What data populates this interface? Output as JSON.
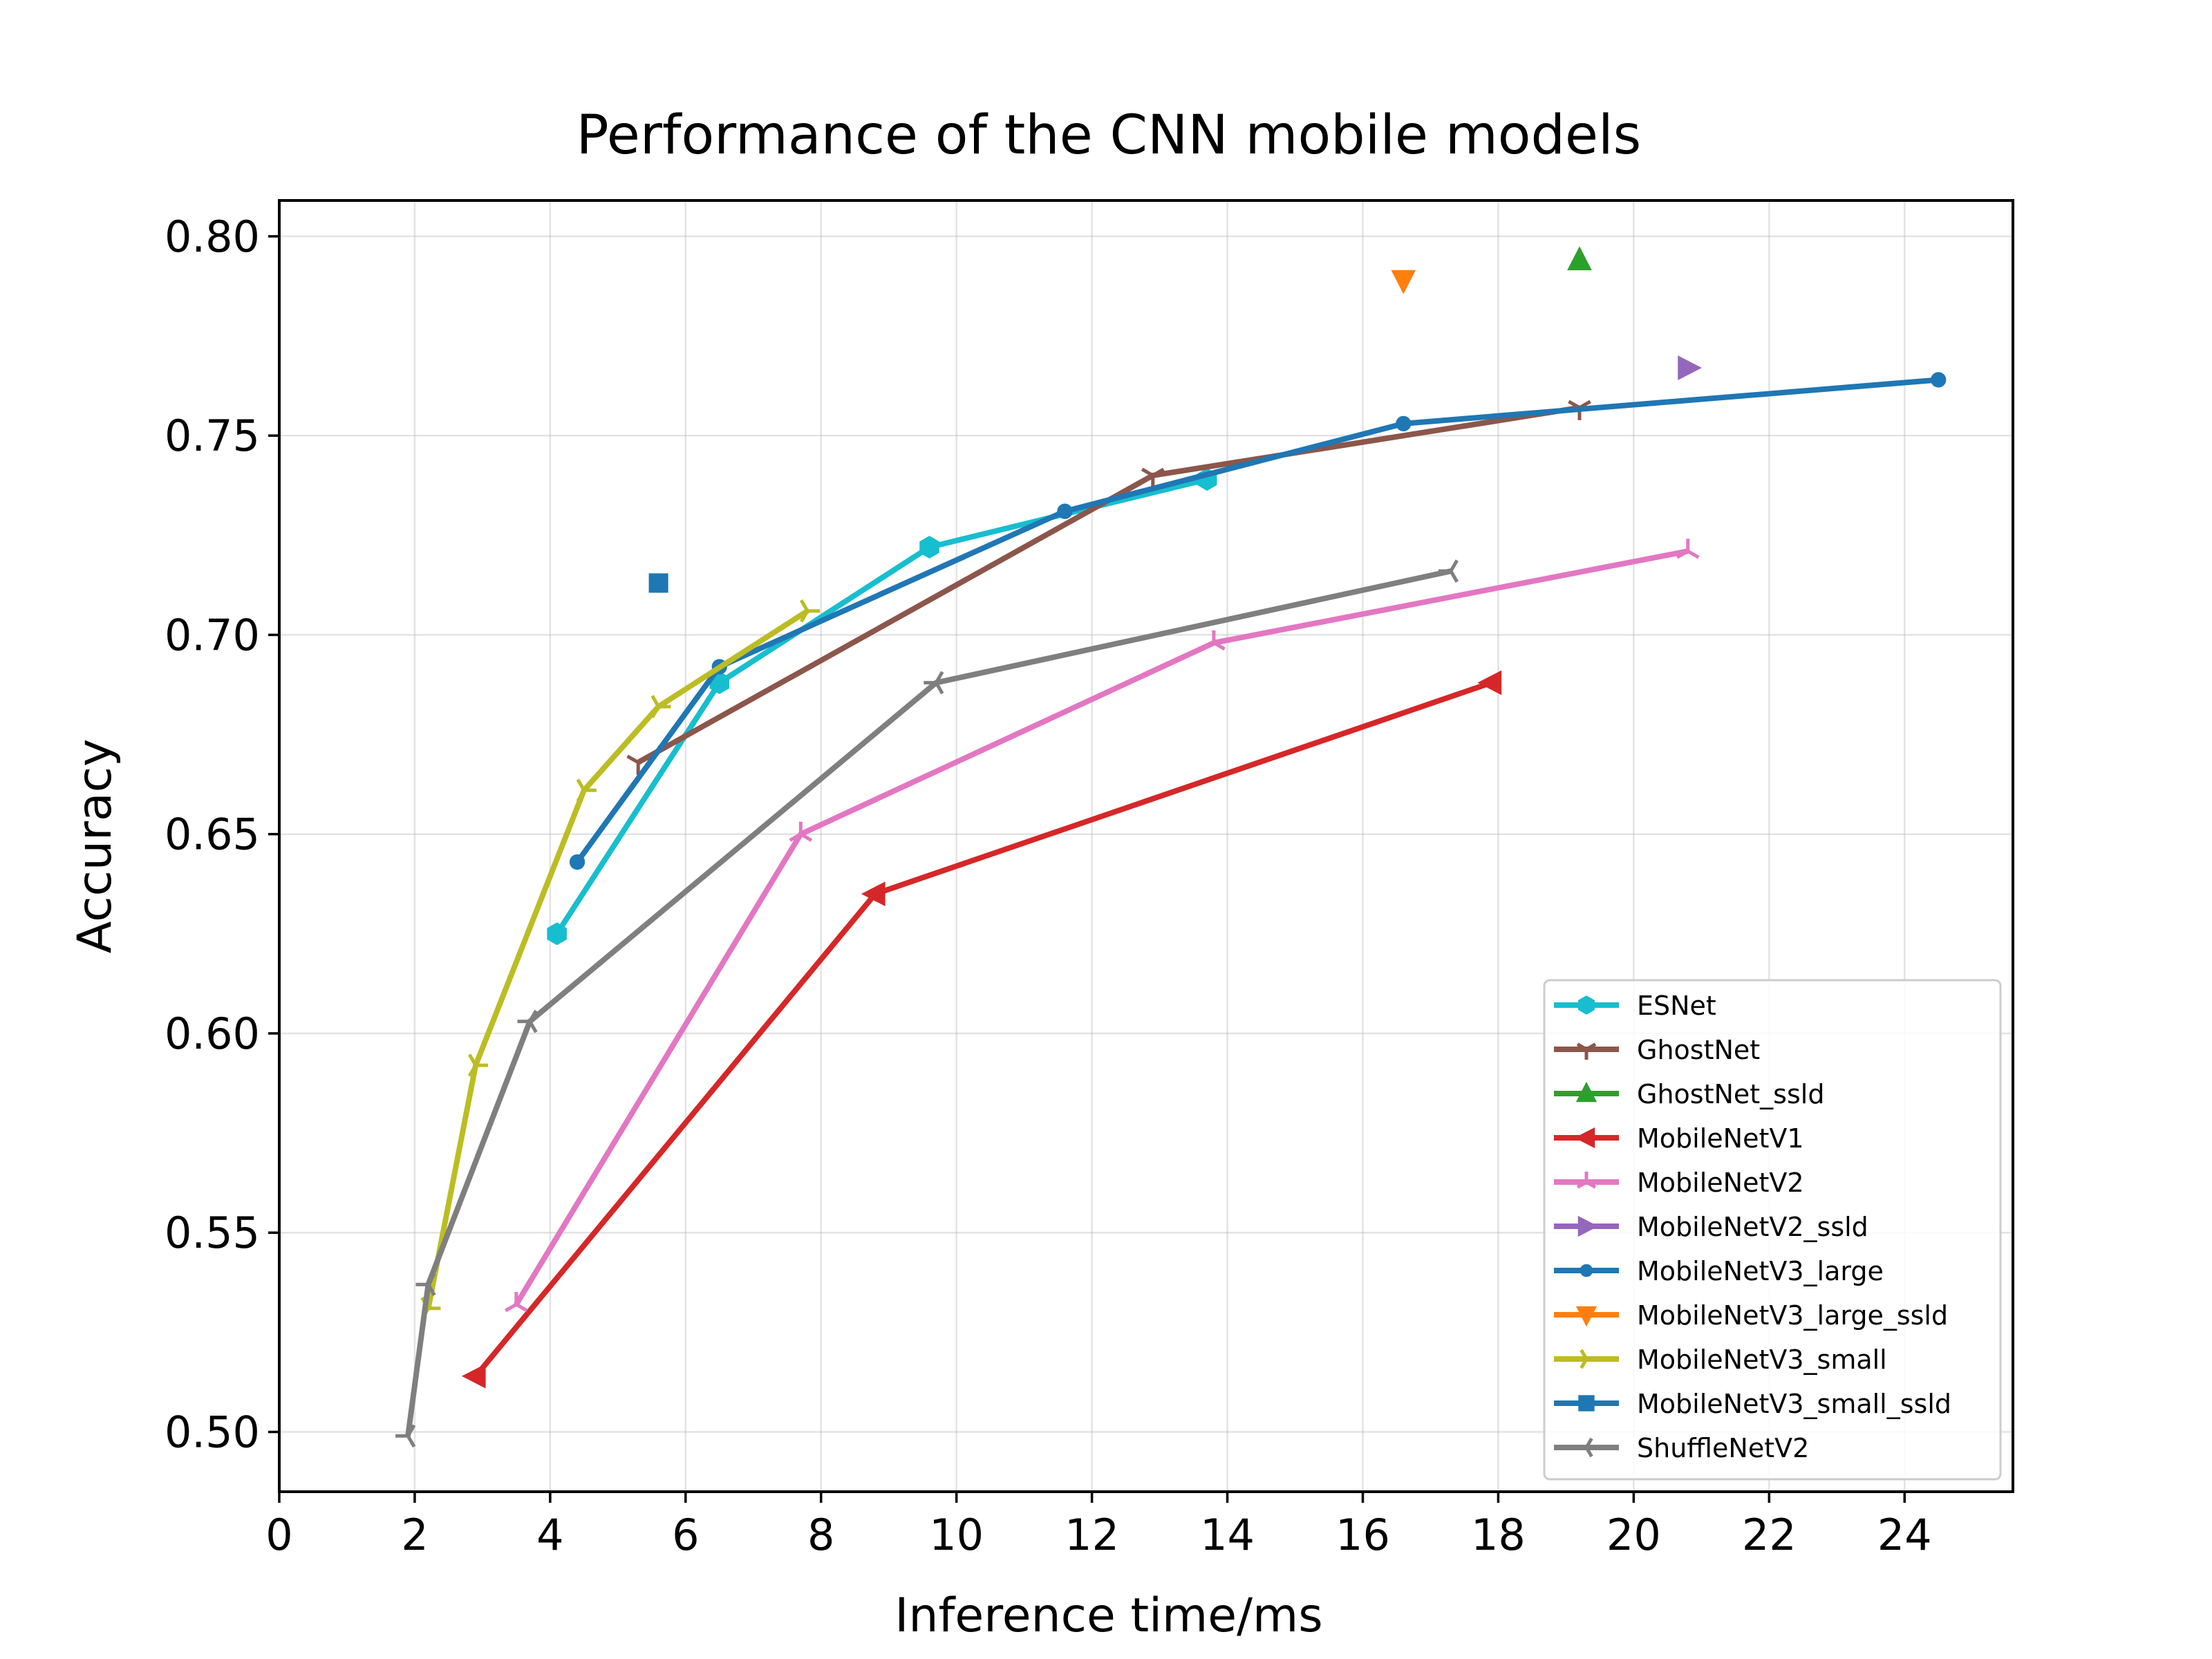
{
  "chart_data": {
    "type": "line",
    "title": "Performance of the CNN mobile models",
    "xlabel": "Inference time/ms",
    "ylabel": "Accuracy",
    "xlim": [
      0,
      25.6
    ],
    "ylim": [
      0.485,
      0.809
    ],
    "xticks": [
      0,
      2,
      4,
      6,
      8,
      10,
      12,
      14,
      16,
      18,
      20,
      22,
      24
    ],
    "yticks": [
      0.5,
      0.55,
      0.6,
      0.65,
      0.7,
      0.75,
      0.8
    ],
    "ytick_labels": [
      "0.50",
      "0.55",
      "0.60",
      "0.65",
      "0.70",
      "0.75",
      "0.80"
    ],
    "grid": true,
    "legend_position": "lower-right",
    "series": [
      {
        "name": "ESNet",
        "color": "#17becf",
        "marker": "hexagon",
        "x": [
          4.1,
          6.5,
          9.6,
          13.7
        ],
        "y": [
          0.625,
          0.688,
          0.722,
          0.739
        ]
      },
      {
        "name": "GhostNet",
        "color": "#8c564b",
        "marker": "tri-down",
        "x": [
          5.3,
          12.9,
          19.2
        ],
        "y": [
          0.668,
          0.74,
          0.757
        ]
      },
      {
        "name": "GhostNet_ssld",
        "color": "#2ca02c",
        "marker": "triangle-up",
        "x": [
          19.2
        ],
        "y": [
          0.794
        ]
      },
      {
        "name": "MobileNetV1",
        "color": "#d62728",
        "marker": "triangle-left",
        "x": [
          2.9,
          8.8,
          17.9
        ],
        "y": [
          0.514,
          0.635,
          0.688
        ]
      },
      {
        "name": "MobileNetV2",
        "color": "#e377c2",
        "marker": "tri-up",
        "x": [
          3.5,
          7.7,
          13.8,
          20.8
        ],
        "y": [
          0.532,
          0.65,
          0.698,
          0.721
        ]
      },
      {
        "name": "MobileNetV2_ssld",
        "color": "#9467bd",
        "marker": "triangle-right",
        "x": [
          20.8
        ],
        "y": [
          0.767
        ]
      },
      {
        "name": "MobileNetV3_large",
        "color": "#1f77b4",
        "marker": "circle",
        "x": [
          4.4,
          6.5,
          11.6,
          16.6,
          24.5
        ],
        "y": [
          0.643,
          0.692,
          0.731,
          0.753,
          0.764
        ]
      },
      {
        "name": "MobileNetV3_large_ssld",
        "color": "#ff7f0e",
        "marker": "triangle-down",
        "x": [
          16.6
        ],
        "y": [
          0.789
        ]
      },
      {
        "name": "MobileNetV3_small",
        "color": "#bcbd22",
        "marker": "tri-right",
        "x": [
          2.2,
          2.9,
          4.5,
          5.6,
          7.8
        ],
        "y": [
          0.531,
          0.592,
          0.661,
          0.682,
          0.706
        ]
      },
      {
        "name": "MobileNetV3_small_ssld",
        "color": "#1f77b4",
        "marker": "square",
        "x": [
          5.6
        ],
        "y": [
          0.713
        ]
      },
      {
        "name": "ShuffleNetV2",
        "color": "#7f7f7f",
        "marker": "tri-left",
        "x": [
          1.9,
          2.2,
          3.7,
          9.7,
          17.3
        ],
        "y": [
          0.499,
          0.537,
          0.603,
          0.688,
          0.716
        ]
      }
    ]
  }
}
